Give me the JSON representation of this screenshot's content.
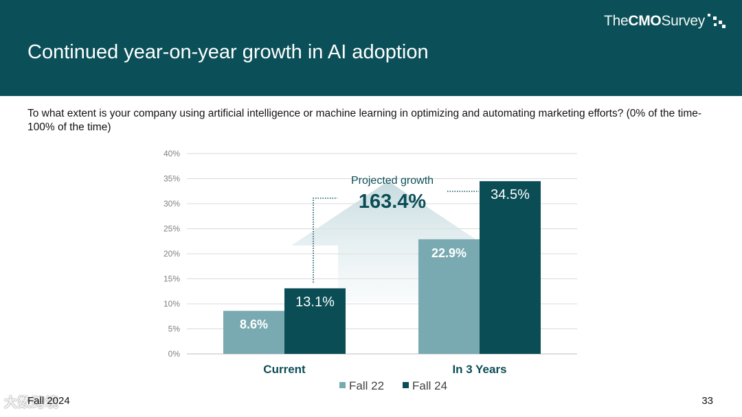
{
  "header": {
    "title": "Continued year-on-year growth in AI adoption",
    "logo": {
      "pre": "The ",
      "brand": "CMO",
      "post": " Survey",
      "icon": "dot-grid-icon"
    },
    "bg_color": "#0b5058"
  },
  "question": "To what extent is your company using artificial intelligence or machine learning in optimizing and automating marketing efforts? (0% of the time-100% of the time)",
  "chart_data": {
    "type": "bar",
    "categories": [
      "Current",
      "In 3 Years"
    ],
    "series": [
      {
        "name": "Fall 22",
        "values": [
          8.6,
          22.9
        ],
        "color": "#7aaab1",
        "labels": [
          "8.6%",
          "22.9%"
        ]
      },
      {
        "name": "Fall 24",
        "values": [
          13.1,
          34.5
        ],
        "color": "#0b4d55",
        "labels": [
          "13.1%",
          "34.5%"
        ]
      }
    ],
    "ylim": [
      0,
      40
    ],
    "yticks": [
      "0%",
      "5%",
      "10%",
      "15%",
      "20%",
      "25%",
      "30%",
      "35%",
      "40%"
    ],
    "grid": true,
    "legend": "bottom",
    "annotation": {
      "label": "Projected growth",
      "value": "163.4%"
    }
  },
  "footer": {
    "left": "Fall 2024",
    "page": "33",
    "watermark": "大数跨境"
  }
}
